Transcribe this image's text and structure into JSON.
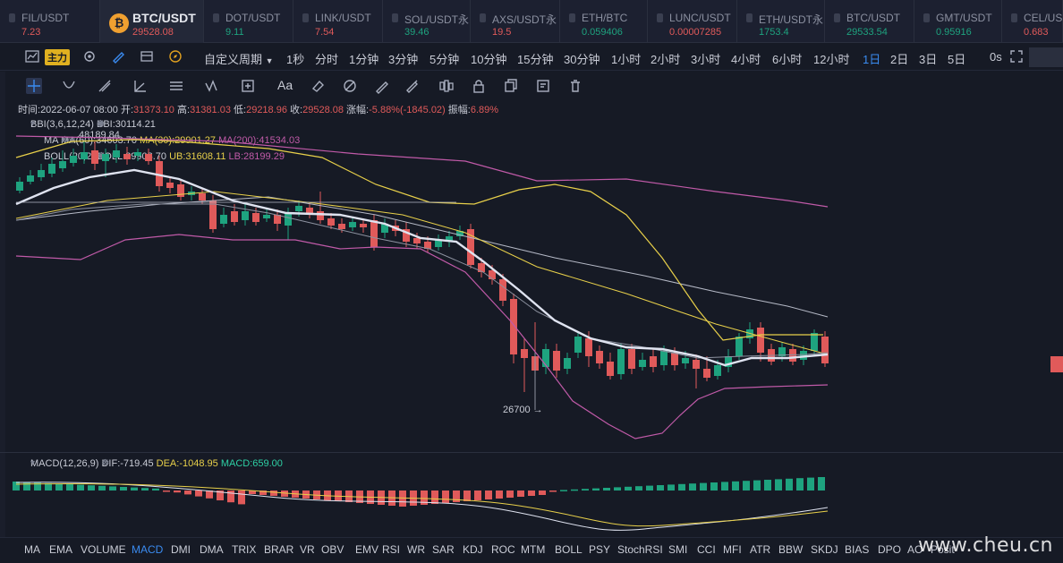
{
  "tickers": [
    {
      "name": "FIL/USDT",
      "price": "7.23",
      "dir": "down"
    },
    {
      "name": "BTC/USDT",
      "price": "29528.08",
      "dir": "down",
      "active": true
    },
    {
      "name": "DOT/USDT",
      "price": "9.11",
      "dir": "up"
    },
    {
      "name": "LINK/USDT",
      "price": "7.54",
      "dir": "down"
    },
    {
      "name": "SOL/USDT永",
      "price": "39.46",
      "dir": "up"
    },
    {
      "name": "AXS/USDT永",
      "price": "19.5",
      "dir": "down"
    },
    {
      "name": "ETH/BTC",
      "price": "0.059406",
      "dir": "up"
    },
    {
      "name": "LUNC/USDT",
      "price": "0.00007285",
      "dir": "down"
    },
    {
      "name": "ETH/USDT永",
      "price": "1753.4",
      "dir": "up"
    },
    {
      "name": "BTC/USDT",
      "price": "29533.54",
      "dir": "up"
    },
    {
      "name": "GMT/USDT",
      "price": "0.95916",
      "dir": "up"
    },
    {
      "name": "CEL/USDT",
      "price": "0.683",
      "dir": "down"
    }
  ],
  "toolbar": {
    "main_label": "主力",
    "custom_period": "自定义周期",
    "periods": [
      "1秒",
      "分时",
      "1分钟",
      "3分钟",
      "5分钟",
      "10分钟",
      "15分钟",
      "30分钟",
      "1小时",
      "2小时",
      "3小时",
      "4小时",
      "6小时",
      "12小时",
      "1日",
      "2日",
      "3日",
      "5日"
    ],
    "selected_period": "1日",
    "right_label": "0s"
  },
  "draw_tools": [
    "crosshair-icon",
    "curve-icon",
    "ray-icon",
    "trend-angle-icon",
    "parallel-lines-icon",
    "wave-icon",
    "box-icon",
    "text-tool-icon",
    "eraser-icon",
    "hide-icon",
    "pen-icon",
    "brush-icon",
    "measure-icon",
    "lock-icon",
    "copy-icon",
    "notes-icon",
    "trash-icon"
  ],
  "draw_text_label": "Aa",
  "info": {
    "time_label": "时间:",
    "time": "2022-06-07 08:00",
    "open_label": "开:",
    "open": "31373.10",
    "high_label": "高:",
    "high": "31381.03",
    "low_label": "低:",
    "low": "29218.96",
    "close_label": "收:",
    "close": "29528.08",
    "chg_label": "涨幅:",
    "chg": "-5.88%(-1845.02)",
    "amp_label": "振幅:",
    "amp": "6.89%"
  },
  "legend": {
    "bbi_title": "BBI(3,6,12,24)",
    "bbi_value": "BBI:30114.21",
    "ma_title": "MA",
    "ma60": "MA(60):34603.70",
    "ma30": "MA(30):29901.27",
    "ma200": "MA(200):41534.03",
    "boll_title": "BOLL(20,2)",
    "boll": "BOLL:29903.70",
    "ub": "UB:31608.11",
    "lb": "LB:28199.29",
    "macd_title": "MACD(12,26,9)",
    "dif": "DIF:-719.45",
    "dea": "DEA:-1048.95",
    "macd": "MACD:659.00"
  },
  "annotations": {
    "high_mark": "48189.84",
    "low_mark": "26700 →"
  },
  "indicators": [
    "MA",
    "EMA",
    "VOLUME",
    "MACD",
    "DMI",
    "DMA",
    "TRIX",
    "BRAR",
    "VR",
    "OBV",
    "EMV",
    "RSI",
    "WR",
    "SAR",
    "KDJ",
    "ROC",
    "MTM",
    "BOLL",
    "PSY",
    "StochRSI",
    "SMI",
    "CCI",
    "MFI",
    "ATR",
    "BBW",
    "SKDJ",
    "BIAS",
    "DPO",
    "AO",
    "Posit"
  ],
  "selected_indicator": "MACD",
  "watermark": "www.cheu.cn",
  "colors": {
    "up": "#1ea37f",
    "down": "#e05a5a",
    "accent": "#3a8bf0",
    "ma30": "#e8d04a",
    "ma200": "#c05aa8",
    "boll": "#dfe3f0"
  }
}
